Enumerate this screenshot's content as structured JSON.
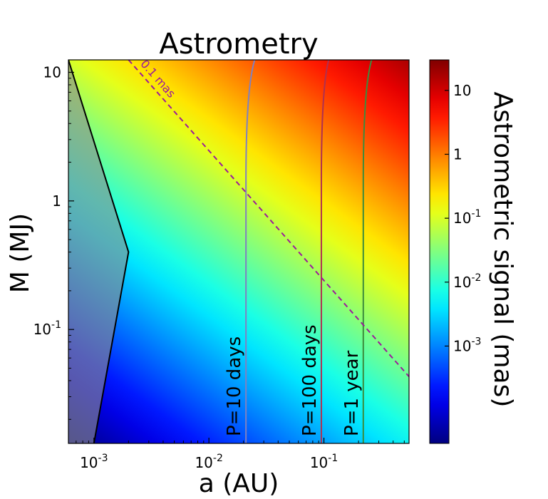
{
  "chart_data": {
    "type": "heatmap",
    "title": "Astrometry",
    "xlabel": "a (AU)",
    "ylabel": "M (MJ)",
    "x_scale": "log",
    "y_scale": "log",
    "xlim": [
      0.0006,
      0.55
    ],
    "ylim": [
      0.013,
      12.5
    ],
    "x_ticks": [
      {
        "value": 0.001,
        "base": "10",
        "exp": "-3"
      },
      {
        "value": 0.01,
        "base": "10",
        "exp": "-2"
      },
      {
        "value": 0.1,
        "base": "10",
        "exp": "-1"
      }
    ],
    "y_ticks": [
      {
        "value": 10,
        "base": "10",
        "exp": ""
      },
      {
        "value": 1,
        "base": "1",
        "exp": ""
      },
      {
        "value": 0.1,
        "base": "10",
        "exp": "-1"
      }
    ],
    "colormap": "jet",
    "colorbar": {
      "label": "Astrometric signal (mas)",
      "scale": "log",
      "range": [
        3e-05,
        30
      ],
      "ticks": [
        {
          "value": 10,
          "base": "10",
          "exp": ""
        },
        {
          "value": 1,
          "base": "1",
          "exp": ""
        },
        {
          "value": 0.1,
          "base": "10",
          "exp": "-1"
        },
        {
          "value": 0.01,
          "base": "10",
          "exp": "-2"
        },
        {
          "value": 0.001,
          "base": "10",
          "exp": "-3"
        }
      ]
    },
    "excluded_region": {
      "boundary": [
        [
          0.001,
          0.013
        ],
        [
          0.002,
          0.4
        ],
        [
          0.0006,
          12.5
        ]
      ],
      "color": "#8c8c8c"
    },
    "contour": {
      "label": "0.1 mas",
      "color": "#9b1b9b",
      "style": "dashed",
      "points": [
        [
          0.002,
          12.5
        ],
        [
          0.55,
          0.043
        ]
      ]
    },
    "period_lines": [
      {
        "label": "P=10 days",
        "a_low_mass": 0.021,
        "a_high_mass": 0.025,
        "color": "#8080c0"
      },
      {
        "label": "P=100 days",
        "a_low_mass": 0.095,
        "a_high_mass": 0.11,
        "color": "#b03050"
      },
      {
        "label": "P=1 year",
        "a_low_mass": 0.22,
        "a_high_mass": 0.26,
        "color": "#3c8c3c"
      }
    ]
  }
}
